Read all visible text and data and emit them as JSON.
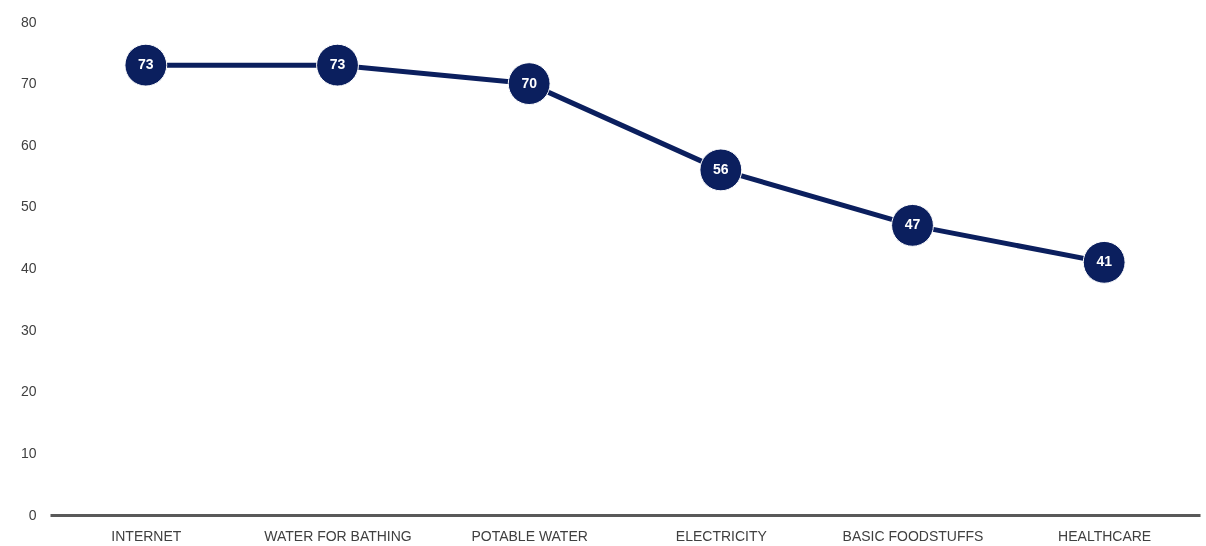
{
  "chart_data": {
    "type": "line",
    "categories": [
      "INTERNET",
      "WATER FOR BATHING",
      "POTABLE WATER",
      "ELECTRICITY",
      "BASIC FOODSTUFFS",
      "HEALTHCARE"
    ],
    "series": [
      {
        "color": "#0b1f5e",
        "values": [
          73,
          73,
          70,
          56,
          47,
          41
        ]
      }
    ],
    "ylim": [
      0,
      80
    ],
    "yticks": [
      0,
      10,
      20,
      30,
      40,
      50,
      60,
      70,
      80
    ],
    "grid": false,
    "legend": false,
    "marker": "circle",
    "line_style": "solid",
    "data_labels": true
  }
}
